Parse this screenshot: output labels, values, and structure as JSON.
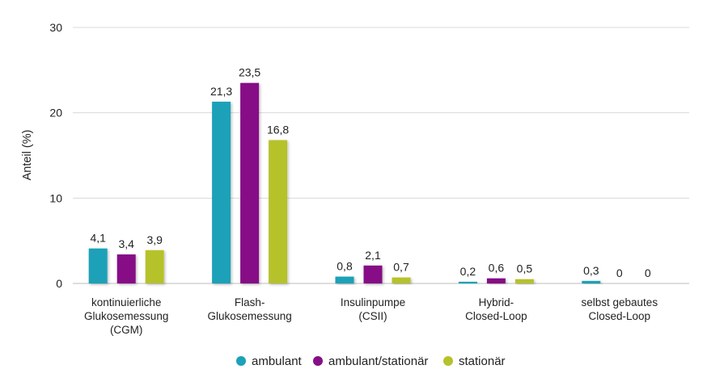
{
  "chart_data": {
    "type": "bar",
    "title": "",
    "xlabel": "",
    "ylabel": "Anteil (%)",
    "ylim": [
      0,
      30
    ],
    "yticks": [
      "0",
      "10",
      "20",
      "30"
    ],
    "grid": true,
    "legend_position": "bottom",
    "categories": [
      [
        "kontinuierliche",
        "Glukosemessung",
        "(CGM)"
      ],
      [
        "Flash-",
        "Glukosemessung"
      ],
      [
        "Insulinpumpe",
        "(CSII)"
      ],
      [
        "Hybrid-",
        "Closed-Loop"
      ],
      [
        "selbst gebautes",
        "Closed-Loop"
      ]
    ],
    "series": [
      {
        "name": "ambulant",
        "color": "#1ba1b8",
        "values": [
          4.1,
          21.3,
          0.8,
          0.2,
          0.3
        ],
        "labels": [
          "4,1",
          "21,3",
          "0,8",
          "0,2",
          "0,3"
        ]
      },
      {
        "name": "ambulant/stationär",
        "color": "#860f86",
        "values": [
          3.4,
          23.5,
          2.1,
          0.6,
          0
        ],
        "labels": [
          "3,4",
          "23,5",
          "2,1",
          "0,6",
          "0"
        ]
      },
      {
        "name": "stationär",
        "color": "#b6c22b",
        "values": [
          3.9,
          16.8,
          0.7,
          0.5,
          0
        ],
        "labels": [
          "3,9",
          "16,8",
          "0,7",
          "0,5",
          "0"
        ]
      }
    ]
  }
}
